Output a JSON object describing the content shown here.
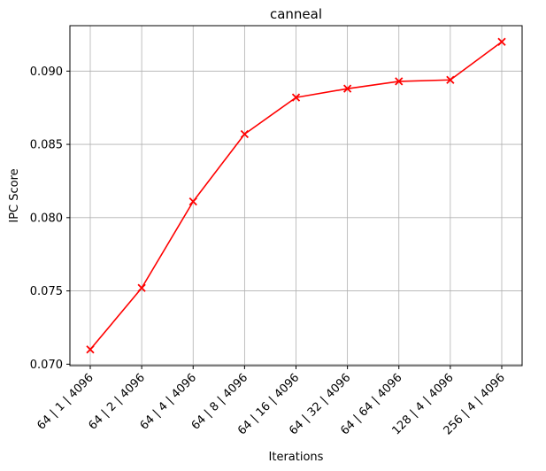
{
  "chart_data": {
    "type": "line",
    "title": "canneal",
    "xlabel": "Iterations",
    "ylabel": "IPC Score",
    "categories": [
      "64 | 1 | 4096",
      "64 | 2 | 4096",
      "64 | 4 | 4096",
      "64 | 8 | 4096",
      "64 | 16 | 4096",
      "64 | 32 | 4096",
      "64 | 64 | 4096",
      "128 | 4 | 4096",
      "256 | 4 | 4096"
    ],
    "series": [
      {
        "values": [
          0.071,
          0.0752,
          0.0811,
          0.0857,
          0.0882,
          0.0888,
          0.0893,
          0.0894,
          0.092
        ],
        "color": "#ff0000",
        "marker": "x"
      }
    ],
    "ylim": [
      0.0699,
      0.0931
    ],
    "yticks": [
      0.07,
      0.075,
      0.08,
      0.085,
      0.09
    ],
    "ytick_labels": [
      "0.070",
      "0.075",
      "0.080",
      "0.085",
      "0.090"
    ],
    "grid": true,
    "grid_color": "#b0b0b0"
  }
}
